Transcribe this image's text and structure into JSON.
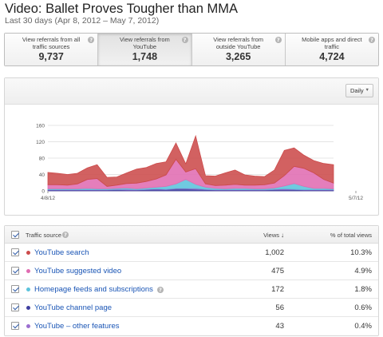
{
  "header": {
    "title": "Video: Ballet Proves Tougher than MMA",
    "subtitle": "Last 30 days (Apr 8, 2012 – May 7, 2012)"
  },
  "tiles": [
    {
      "label": "View referrals from all traffic sources",
      "value": "9,737",
      "selected": false
    },
    {
      "label": "View referrals from YouTube",
      "value": "1,748",
      "selected": true
    },
    {
      "label": "View referrals from outside YouTube",
      "value": "3,265",
      "selected": false
    },
    {
      "label": "Mobile apps and direct traffic",
      "value": "4,724",
      "selected": false
    }
  ],
  "controls": {
    "interval": "Daily"
  },
  "chart_data": {
    "type": "area",
    "stacked": true,
    "x_labels": [
      "4/8/12",
      "5/7/12"
    ],
    "y_ticks": [
      0,
      40,
      80,
      120,
      160
    ],
    "ylim": [
      0,
      160
    ],
    "grid": true,
    "series": [
      {
        "name": "YouTube channel page",
        "color": "#3f3fa0",
        "values": [
          2,
          2,
          2,
          2,
          2,
          2,
          2,
          3,
          2,
          2,
          3,
          4,
          3,
          5,
          5,
          4,
          3,
          2,
          2,
          2,
          2,
          2,
          2,
          3,
          3,
          3,
          2,
          2,
          2,
          2
        ]
      },
      {
        "name": "YouTube – other features",
        "color": "#9c6fd0",
        "values": [
          1,
          1,
          1,
          1,
          1,
          1,
          1,
          1,
          2,
          1,
          1,
          1,
          1,
          1,
          1,
          2,
          1,
          1,
          1,
          1,
          1,
          1,
          1,
          1,
          2,
          1,
          1,
          1,
          1,
          1
        ]
      },
      {
        "name": "Homepage feeds and subscriptions",
        "color": "#5cc3dc",
        "values": [
          2,
          2,
          2,
          2,
          3,
          2,
          2,
          2,
          3,
          2,
          3,
          4,
          7,
          11,
          22,
          10,
          5,
          3,
          2,
          3,
          3,
          2,
          2,
          3,
          7,
          14,
          8,
          3,
          3,
          2
        ]
      },
      {
        "name": "YouTube suggested video",
        "color": "#e06cb2",
        "values": [
          10,
          10,
          9,
          12,
          22,
          25,
          6,
          8,
          11,
          14,
          16,
          20,
          28,
          60,
          18,
          38,
          8,
          7,
          9,
          10,
          8,
          9,
          10,
          12,
          25,
          42,
          44,
          38,
          22,
          14
        ]
      },
      {
        "name": "YouTube search",
        "color": "#cc4b4b",
        "values": [
          30,
          28,
          26,
          26,
          28,
          34,
          22,
          20,
          26,
          34,
          34,
          38,
          32,
          40,
          20,
          80,
          20,
          23,
          30,
          35,
          25,
          22,
          20,
          32,
          62,
          45,
          32,
          30,
          39,
          45
        ]
      }
    ]
  },
  "table": {
    "headers": {
      "source": "Traffic source",
      "views": "Views",
      "pct": "% of total views"
    },
    "rows": [
      {
        "name": "YouTube search",
        "color": "#cc4b4b",
        "views": "1,002",
        "pct": "10.3%",
        "help": false
      },
      {
        "name": "YouTube suggested video",
        "color": "#e06cb2",
        "views": "475",
        "pct": "4.9%",
        "help": false
      },
      {
        "name": "Homepage feeds and subscriptions",
        "color": "#5cc3dc",
        "views": "172",
        "pct": "1.8%",
        "help": true
      },
      {
        "name": "YouTube channel page",
        "color": "#3f3fa0",
        "views": "56",
        "pct": "0.6%",
        "help": false
      },
      {
        "name": "YouTube – other features",
        "color": "#9c6fd0",
        "views": "43",
        "pct": "0.4%",
        "help": false
      }
    ]
  }
}
